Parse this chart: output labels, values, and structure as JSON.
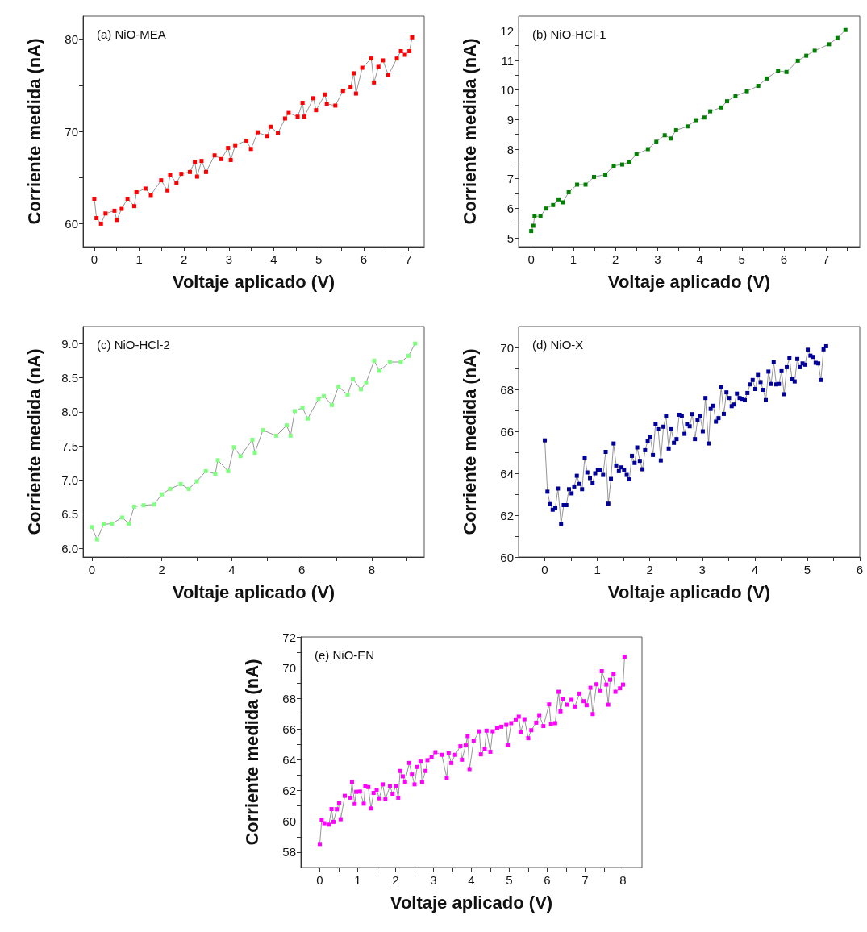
{
  "chart_data": [
    {
      "type": "line",
      "title": "(a) NiO-MEA",
      "xlabel": "Voltaje aplicado (V)",
      "ylabel": "Corriente medida (nA)",
      "marker": "square",
      "line_style": "solid",
      "xlim": [
        -0.25,
        7.35
      ],
      "xticks": [
        0,
        {
          "value": 0.5,
          "label": null
        },
        1,
        {
          "value": 1.5,
          "label": null
        },
        2,
        {
          "value": 2.5,
          "label": null
        },
        3,
        {
          "value": 3.5,
          "label": null
        },
        4,
        {
          "value": 4.5,
          "label": null
        },
        5,
        {
          "value": 5.5,
          "label": null
        },
        6,
        {
          "value": 6.5,
          "label": null
        },
        7
      ],
      "ylim": [
        57.5,
        82.5
      ],
      "yticks": [
        60,
        {
          "value": 65,
          "label": null
        },
        70,
        {
          "value": 75,
          "label": null
        },
        80
      ],
      "series": [
        {
          "color": "#ff0000",
          "x": [
            0,
            0.05,
            0.15,
            0.25,
            0.45,
            0.5,
            0.61,
            0.74,
            0.89,
            0.94,
            1.14,
            1.26,
            1.49,
            1.63,
            1.69,
            1.83,
            1.94,
            2.13,
            2.24,
            2.29,
            2.39,
            2.49,
            2.68,
            2.83,
            2.98,
            3.04,
            3.14,
            3.39,
            3.49,
            3.64,
            3.85,
            3.93,
            4.09,
            4.25,
            4.33,
            4.53,
            4.64,
            4.68,
            4.88,
            4.94,
            5.14,
            5.18,
            5.37,
            5.54,
            5.71,
            5.78,
            5.83,
            5.97,
            6.17,
            6.23,
            6.33,
            6.43,
            6.55,
            6.74,
            6.83,
            6.92,
            7.02,
            7.08
          ],
          "values": [
            62.7,
            60.6,
            60.0,
            61.1,
            61.4,
            60.4,
            61.6,
            62.7,
            61.9,
            63.4,
            63.8,
            63.1,
            64.7,
            63.6,
            65.3,
            64.4,
            65.4,
            65.6,
            66.7,
            65.1,
            66.8,
            65.6,
            67.4,
            67.0,
            68.2,
            66.9,
            68.5,
            69.0,
            68.1,
            69.9,
            69.5,
            70.5,
            69.8,
            71.4,
            72.0,
            71.6,
            73.1,
            71.6,
            73.6,
            72.3,
            74.0,
            73.0,
            72.8,
            74.4,
            74.8,
            76.3,
            74.1,
            76.9,
            77.9,
            75.3,
            77.0,
            77.7,
            76.1,
            77.9,
            78.7,
            78.3,
            78.7,
            80.2
          ]
        }
      ]
    },
    {
      "type": "line",
      "title": "(b) NiO-HCl-1",
      "xlabel": "Voltaje aplicado (V)",
      "ylabel": "Corriente medida (nA)",
      "marker": "square",
      "line_style": "solid",
      "xlim": [
        -0.3,
        7.8
      ],
      "xticks": [
        0,
        {
          "value": 0.5,
          "label": null
        },
        1,
        {
          "value": 1.5,
          "label": null
        },
        2,
        {
          "value": 2.5,
          "label": null
        },
        3,
        {
          "value": 3.5,
          "label": null
        },
        4,
        {
          "value": 4.5,
          "label": null
        },
        5,
        {
          "value": 5.5,
          "label": null
        },
        6,
        {
          "value": 6.5,
          "label": null
        },
        7,
        {
          "value": 7.5,
          "label": null
        }
      ],
      "ylim": [
        4.7,
        12.5
      ],
      "yticks": [
        5,
        {
          "value": 5.5,
          "label": null
        },
        6,
        {
          "value": 6.5,
          "label": null
        },
        7,
        {
          "value": 7.5,
          "label": null
        },
        8,
        {
          "value": 8.5,
          "label": null
        },
        9,
        {
          "value": 9.5,
          "label": null
        },
        10,
        {
          "value": 10.5,
          "label": null
        },
        11,
        {
          "value": 11.5,
          "label": null
        },
        12
      ],
      "series": [
        {
          "color": "#008000",
          "x": [
            0,
            0.05,
            0.08,
            0.22,
            0.35,
            0.52,
            0.65,
            0.75,
            0.89,
            1.09,
            1.29,
            1.49,
            1.76,
            1.96,
            2.16,
            2.33,
            2.5,
            2.77,
            2.97,
            3.17,
            3.31,
            3.44,
            3.71,
            3.91,
            4.11,
            4.25,
            4.51,
            4.65,
            4.85,
            5.12,
            5.39,
            5.59,
            5.86,
            6.06,
            6.33,
            6.53,
            6.73,
            7.07,
            7.27,
            7.46
          ],
          "values": [
            5.23,
            5.41,
            5.73,
            5.73,
            5.99,
            6.11,
            6.3,
            6.2,
            6.54,
            6.8,
            6.8,
            7.06,
            7.14,
            7.44,
            7.48,
            7.57,
            7.83,
            8.0,
            8.25,
            8.47,
            8.36,
            8.64,
            8.77,
            8.98,
            9.07,
            9.28,
            9.41,
            9.62,
            9.79,
            9.96,
            10.14,
            10.39,
            10.65,
            10.61,
            10.99,
            11.16,
            11.33,
            11.55,
            11.76,
            12.03
          ]
        }
      ]
    },
    {
      "type": "line",
      "title": "(c) NiO-HCl-2",
      "xlabel": "Voltaje aplicado (V)",
      "ylabel": "Corriente medida (nA)",
      "marker": "square",
      "line_style": "solid",
      "xlim": [
        -0.25,
        9.5
      ],
      "xticks": [
        0,
        {
          "value": 1,
          "label": null
        },
        2,
        {
          "value": 3,
          "label": null
        },
        4,
        {
          "value": 5,
          "label": null
        },
        6,
        {
          "value": 7,
          "label": null
        },
        8,
        {
          "value": 9,
          "label": null
        }
      ],
      "ylim": [
        5.87,
        9.25
      ],
      "yticks": [
        {
          "value": 6,
          "label": "6.0"
        },
        6.5,
        {
          "value": 7,
          "label": "7.0"
        },
        7.5,
        {
          "value": 8,
          "label": "8.0"
        },
        8.5,
        {
          "value": 9,
          "label": "9.0"
        }
      ],
      "series": [
        {
          "color": "#80ff80",
          "x": [
            0,
            0.15,
            0.34,
            0.57,
            0.87,
            1.06,
            1.21,
            1.48,
            1.78,
            2.0,
            2.24,
            2.54,
            2.77,
            3.0,
            3.26,
            3.53,
            3.6,
            3.9,
            4.06,
            4.25,
            4.59,
            4.66,
            4.89,
            5.27,
            5.57,
            5.68,
            5.8,
            6.02,
            6.17,
            6.48,
            6.63,
            6.86,
            7.05,
            7.31,
            7.46,
            7.69,
            7.84,
            8.07,
            8.22,
            8.52,
            8.83,
            9.05,
            9.24
          ],
          "values": [
            6.31,
            6.13,
            6.35,
            6.36,
            6.45,
            6.36,
            6.61,
            6.63,
            6.64,
            6.79,
            6.87,
            6.94,
            6.87,
            6.98,
            7.13,
            7.09,
            7.29,
            7.13,
            7.48,
            7.35,
            7.59,
            7.4,
            7.73,
            7.65,
            7.8,
            7.65,
            8.01,
            8.06,
            7.9,
            8.19,
            8.23,
            8.1,
            8.37,
            8.25,
            8.48,
            8.33,
            8.43,
            8.75,
            8.6,
            8.73,
            8.73,
            8.82,
            9.0
          ]
        }
      ]
    },
    {
      "type": "line",
      "title": "(d) NiO-X",
      "xlabel": "Voltaje aplicado (V)",
      "ylabel": "Corriente medida (nA)",
      "marker": "square",
      "line_style": "solid",
      "xlim": [
        -0.5,
        6
      ],
      "xticks": [
        0,
        {
          "value": 0.5,
          "label": null
        },
        1,
        {
          "value": 1.5,
          "label": null
        },
        2,
        {
          "value": 2.5,
          "label": null
        },
        3,
        {
          "value": 3.5,
          "label": null
        },
        4,
        {
          "value": 4.5,
          "label": null
        },
        5,
        {
          "value": 5.5,
          "label": null
        },
        6
      ],
      "ylim": [
        60,
        71
      ],
      "yticks": [
        60,
        {
          "value": 61,
          "label": null
        },
        62,
        {
          "value": 63,
          "label": null
        },
        64,
        {
          "value": 65,
          "label": null
        },
        66,
        {
          "value": 67,
          "label": null
        },
        68,
        {
          "value": 69,
          "label": null
        },
        70
      ],
      "series": [
        {
          "color": "#000099",
          "x": [
            0,
            0.05,
            0.1,
            0.15,
            0.2,
            0.25,
            0.31,
            0.36,
            0.41,
            0.46,
            0.51,
            0.56,
            0.61,
            0.66,
            0.71,
            0.76,
            0.81,
            0.86,
            0.91,
            0.96,
            1.01,
            1.06,
            1.11,
            1.16,
            1.21,
            1.26,
            1.31,
            1.36,
            1.41,
            1.46,
            1.51,
            1.56,
            1.61,
            1.66,
            1.71,
            1.76,
            1.81,
            1.86,
            1.91,
            1.96,
            2.01,
            2.06,
            2.11,
            2.16,
            2.21,
            2.26,
            2.31,
            2.36,
            2.41,
            2.46,
            2.51,
            2.56,
            2.61,
            2.66,
            2.71,
            2.76,
            2.81,
            2.86,
            2.91,
            2.96,
            3.01,
            3.06,
            3.12,
            3.16,
            3.21,
            3.26,
            3.31,
            3.36,
            3.41,
            3.46,
            3.51,
            3.56,
            3.61,
            3.66,
            3.71,
            3.76,
            3.81,
            3.86,
            3.91,
            3.96,
            4.01,
            4.06,
            4.11,
            4.16,
            4.21,
            4.26,
            4.31,
            4.36,
            4.41,
            4.46,
            4.51,
            4.56,
            4.61,
            4.66,
            4.71,
            4.76,
            4.81,
            4.86,
            4.91,
            4.96,
            5.01,
            5.06,
            5.11,
            5.16,
            5.21,
            5.26,
            5.31,
            5.36
          ],
          "values": [
            65.57,
            63.12,
            62.53,
            62.26,
            62.36,
            63.27,
            61.57,
            62.48,
            62.48,
            63.24,
            63.04,
            63.37,
            63.88,
            63.49,
            63.24,
            64.75,
            64.04,
            63.77,
            63.53,
            64.0,
            64.16,
            64.16,
            63.92,
            65.02,
            62.55,
            63.73,
            65.42,
            64.37,
            64.1,
            64.28,
            64.16,
            63.92,
            63.71,
            64.83,
            64.49,
            65.23,
            64.59,
            64.19,
            65.1,
            65.53,
            65.75,
            64.87,
            66.36,
            66.1,
            64.61,
            66.22,
            66.71,
            65.18,
            66.1,
            65.45,
            65.63,
            66.79,
            66.73,
            65.88,
            66.34,
            66.24,
            66.82,
            65.63,
            66.55,
            66.73,
            66.0,
            67.59,
            65.42,
            67.07,
            67.22,
            66.46,
            66.63,
            68.1,
            66.83,
            67.86,
            67.59,
            67.2,
            67.28,
            67.8,
            67.59,
            67.55,
            67.49,
            67.83,
            68.24,
            68.45,
            68.02,
            68.69,
            68.35,
            67.98,
            67.49,
            68.85,
            68.26,
            69.3,
            68.24,
            68.26,
            68.87,
            67.77,
            69.06,
            69.49,
            68.48,
            68.38,
            69.45,
            69.06,
            69.24,
            69.18,
            69.89,
            69.61,
            69.55,
            69.27,
            69.24,
            68.45,
            69.91,
            70.06
          ]
        }
      ]
    },
    {
      "type": "line",
      "title": "(e) NiO-EN",
      "xlabel": "Voltaje aplicado (V)",
      "ylabel": "Corriente medida (nA)",
      "marker": "square",
      "line_style": "solid",
      "xlim": [
        -0.5,
        8.5
      ],
      "xticks": [
        0,
        {
          "value": 0.5,
          "label": null
        },
        1,
        {
          "value": 1.5,
          "label": null
        },
        2,
        {
          "value": 2.5,
          "label": null
        },
        3,
        {
          "value": 3.5,
          "label": null
        },
        4,
        {
          "value": 4.5,
          "label": null
        },
        5,
        {
          "value": 5.5,
          "label": null
        },
        6,
        {
          "value": 6.5,
          "label": null
        },
        7,
        {
          "value": 7.5,
          "label": null
        },
        8
      ],
      "ylim": [
        57,
        72
      ],
      "yticks": [
        58,
        {
          "value": 59,
          "label": null
        },
        60,
        {
          "value": 61,
          "label": null
        },
        62,
        {
          "value": 63,
          "label": null
        },
        64,
        {
          "value": 65,
          "label": null
        },
        66,
        {
          "value": 67,
          "label": null
        },
        68,
        {
          "value": 69,
          "label": null
        },
        70,
        {
          "value": 71,
          "label": null
        },
        72
      ],
      "series": [
        {
          "color": "#ff00ff",
          "x": [
            0,
            0.05,
            0.12,
            0.24,
            0.31,
            0.36,
            0.45,
            0.51,
            0.55,
            0.66,
            0.81,
            0.85,
            0.92,
            0.96,
            1.06,
            1.16,
            1.2,
            1.28,
            1.35,
            1.42,
            1.5,
            1.57,
            1.66,
            1.73,
            1.85,
            1.92,
            2.01,
            2.07,
            2.12,
            2.19,
            2.25,
            2.36,
            2.43,
            2.5,
            2.57,
            2.66,
            2.7,
            2.79,
            2.84,
            2.95,
            3.05,
            3.22,
            3.35,
            3.4,
            3.47,
            3.57,
            3.71,
            3.75,
            3.85,
            3.9,
            3.95,
            4.06,
            4.21,
            4.25,
            4.35,
            4.4,
            4.5,
            4.56,
            4.68,
            4.79,
            4.92,
            4.96,
            5.05,
            5.17,
            5.25,
            5.3,
            5.4,
            5.5,
            5.58,
            5.71,
            5.79,
            5.9,
            6.05,
            6.1,
            6.21,
            6.3,
            6.35,
            6.41,
            6.53,
            6.64,
            6.73,
            6.85,
            6.96,
            7.04,
            7.14,
            7.2,
            7.3,
            7.4,
            7.44,
            7.56,
            7.61,
            7.66,
            7.75,
            7.8,
            7.92,
            8.0,
            8.04
          ],
          "values": [
            58.53,
            60.1,
            59.88,
            59.79,
            60.8,
            59.97,
            60.79,
            61.22,
            60.14,
            61.66,
            61.54,
            62.55,
            61.13,
            61.92,
            61.94,
            61.15,
            62.29,
            62.23,
            60.84,
            61.85,
            62.06,
            61.5,
            62.41,
            61.45,
            62.29,
            61.8,
            62.29,
            61.54,
            63.28,
            62.93,
            62.58,
            63.8,
            63.05,
            62.41,
            63.54,
            63.89,
            62.55,
            63.28,
            63.98,
            64.21,
            64.5,
            64.33,
            62.84,
            64.42,
            63.8,
            64.33,
            64.89,
            64.01,
            64.94,
            65.55,
            63.4,
            65.25,
            65.86,
            64.36,
            64.71,
            65.9,
            64.53,
            65.86,
            66.07,
            66.16,
            66.28,
            64.99,
            66.39,
            66.63,
            66.81,
            65.81,
            66.65,
            65.41,
            65.93,
            66.42,
            66.91,
            66.2,
            67.61,
            66.34,
            66.39,
            68.43,
            67.16,
            67.94,
            67.59,
            67.91,
            67.47,
            68.31,
            67.82,
            67.56,
            68.69,
            66.98,
            68.92,
            68.52,
            69.77,
            68.9,
            67.59,
            69.21,
            69.56,
            68.43,
            68.66,
            68.9,
            70.7
          ]
        }
      ]
    }
  ]
}
